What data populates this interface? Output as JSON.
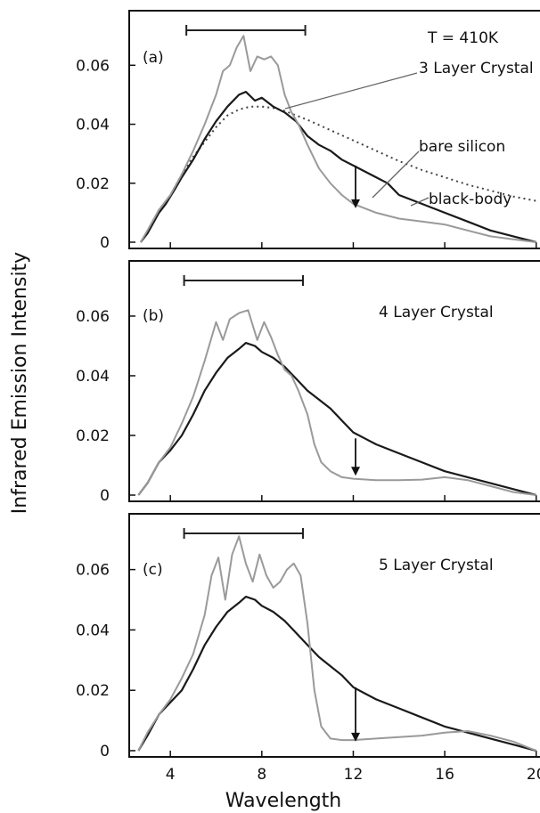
{
  "chart_data": {
    "type": "line",
    "xlabel": "Wavelength",
    "ylabel": "Infrared Emission Intensity",
    "xlim": [
      2.2,
      20.4
    ],
    "x_ticks": [
      "4",
      "8",
      "12",
      "16",
      "20"
    ],
    "x_tick_values": [
      4,
      8,
      12,
      16,
      20
    ],
    "y_ticks": [
      "0",
      "0.02",
      "0.04",
      "0.06"
    ],
    "y_tick_values": [
      0,
      0.02,
      0.04,
      0.06
    ],
    "panels": [
      {
        "letter": "(a)",
        "ylim": [
          0,
          0.077
        ],
        "crystal_label": "3 Layer Crystal",
        "temperature_label": "T = 410K",
        "bare_label": "bare silicon",
        "blackbody_label": "black-body",
        "bar": [
          4.7,
          9.9
        ],
        "arrow": {
          "x": 12.1,
          "from": 0.026,
          "to": 0.0115
        },
        "series": [
          {
            "label": "black-body",
            "style": "dotted",
            "x": [
              2.8,
              3.5,
              4.0,
              4.5,
              5.0,
              5.5,
              6.0,
              6.5,
              7.0,
              7.5,
              8.0,
              8.5,
              9.0,
              9.5,
              10.0,
              11.0,
              12.0,
              13.0,
              14.0,
              15.0,
              16.0,
              17.0,
              18.0,
              19.0,
              20.0
            ],
            "y": [
              0.001,
              0.011,
              0.016,
              0.023,
              0.029,
              0.034,
              0.039,
              0.043,
              0.045,
              0.046,
              0.046,
              0.0455,
              0.0445,
              0.043,
              0.0415,
              0.038,
              0.0345,
              0.031,
              0.0275,
              0.0245,
              0.022,
              0.0195,
              0.0175,
              0.0155,
              0.014
            ]
          },
          {
            "label": "bare silicon",
            "style": "solid",
            "x": [
              2.7,
              3.0,
              3.5,
              3.8,
              4.2,
              4.5,
              5.0,
              5.5,
              6.0,
              6.5,
              7.0,
              7.3,
              7.7,
              8.0,
              8.5,
              9.0,
              9.5,
              10.0,
              10.5,
              11.0,
              11.5,
              12.0,
              12.5,
              13.0,
              13.5,
              14.0,
              15.0,
              16.0,
              17.0,
              18.0,
              19.0,
              20.0
            ],
            "y": [
              0.0,
              0.003,
              0.01,
              0.013,
              0.018,
              0.022,
              0.028,
              0.035,
              0.041,
              0.046,
              0.05,
              0.051,
              0.048,
              0.049,
              0.046,
              0.044,
              0.041,
              0.036,
              0.033,
              0.031,
              0.028,
              0.026,
              0.024,
              0.022,
              0.02,
              0.016,
              0.013,
              0.01,
              0.007,
              0.004,
              0.002,
              0.0
            ]
          },
          {
            "label": "3 Layer Crystal",
            "style": "grey",
            "x": [
              2.7,
              3.0,
              3.5,
              4.0,
              4.5,
              5.0,
              5.5,
              6.0,
              6.3,
              6.6,
              6.9,
              7.2,
              7.5,
              7.8,
              8.1,
              8.4,
              8.7,
              9.0,
              9.3,
              9.6,
              10.0,
              10.5,
              11.0,
              11.5,
              12.0,
              13.0,
              14.0,
              15.0,
              16.0,
              17.0,
              18.0,
              19.0,
              20.0
            ],
            "y": [
              0.0,
              0.004,
              0.011,
              0.016,
              0.023,
              0.031,
              0.04,
              0.05,
              0.058,
              0.06,
              0.066,
              0.07,
              0.058,
              0.063,
              0.062,
              0.063,
              0.06,
              0.05,
              0.044,
              0.04,
              0.033,
              0.025,
              0.02,
              0.016,
              0.013,
              0.01,
              0.008,
              0.007,
              0.006,
              0.004,
              0.002,
              0.001,
              0.0
            ]
          }
        ]
      },
      {
        "letter": "(b)",
        "ylim": [
          0,
          0.077
        ],
        "crystal_label": "4 Layer Crystal",
        "bar": [
          4.6,
          9.8
        ],
        "arrow": {
          "x": 12.1,
          "from": 0.019,
          "to": 0.0065
        },
        "series": [
          {
            "label": "bare silicon",
            "style": "solid",
            "x": [
              2.6,
              3.0,
              3.5,
              4.0,
              4.5,
              5.0,
              5.5,
              6.0,
              6.5,
              7.0,
              7.3,
              7.7,
              8.0,
              8.5,
              9.0,
              9.5,
              10.0,
              10.5,
              11.0,
              11.5,
              12.0,
              12.5,
              13.0,
              14.0,
              15.0,
              16.0,
              17.0,
              18.0,
              19.0,
              20.0
            ],
            "y": [
              0.0,
              0.004,
              0.011,
              0.015,
              0.02,
              0.027,
              0.035,
              0.041,
              0.046,
              0.049,
              0.051,
              0.05,
              0.048,
              0.046,
              0.043,
              0.039,
              0.035,
              0.032,
              0.029,
              0.025,
              0.021,
              0.019,
              0.017,
              0.014,
              0.011,
              0.008,
              0.006,
              0.004,
              0.002,
              0.0
            ]
          },
          {
            "label": "4 Layer Crystal",
            "style": "grey",
            "x": [
              2.6,
              3.0,
              3.5,
              4.0,
              4.5,
              5.0,
              5.5,
              6.0,
              6.3,
              6.6,
              7.0,
              7.4,
              7.8,
              8.1,
              8.4,
              8.7,
              9.0,
              9.3,
              9.6,
              10.0,
              10.3,
              10.6,
              11.0,
              11.5,
              12.0,
              13.0,
              14.0,
              15.0,
              16.0,
              17.0,
              18.0,
              19.0,
              20.0
            ],
            "y": [
              0.0,
              0.004,
              0.011,
              0.016,
              0.024,
              0.033,
              0.045,
              0.058,
              0.052,
              0.059,
              0.061,
              0.062,
              0.052,
              0.058,
              0.053,
              0.047,
              0.042,
              0.04,
              0.035,
              0.027,
              0.017,
              0.011,
              0.008,
              0.006,
              0.0055,
              0.005,
              0.005,
              0.0052,
              0.006,
              0.005,
              0.003,
              0.001,
              0.0
            ]
          }
        ]
      },
      {
        "letter": "(c)",
        "ylim": [
          0,
          0.077
        ],
        "crystal_label": "5 Layer Crystal",
        "bar": [
          4.6,
          9.8
        ],
        "arrow": {
          "x": 12.1,
          "from": 0.021,
          "to": 0.003
        },
        "series": [
          {
            "label": "bare silicon",
            "style": "solid",
            "x": [
              2.6,
              3.0,
              3.5,
              4.0,
              4.5,
              5.0,
              5.5,
              6.0,
              6.5,
              7.0,
              7.3,
              7.7,
              8.0,
              8.5,
              9.0,
              9.5,
              10.0,
              10.5,
              11.0,
              11.5,
              12.0,
              12.5,
              13.0,
              14.0,
              15.0,
              16.0,
              17.0,
              18.0,
              19.0,
              20.0
            ],
            "y": [
              0.0,
              0.005,
              0.012,
              0.016,
              0.02,
              0.027,
              0.035,
              0.041,
              0.046,
              0.049,
              0.051,
              0.05,
              0.048,
              0.046,
              0.043,
              0.039,
              0.035,
              0.031,
              0.028,
              0.025,
              0.021,
              0.019,
              0.017,
              0.014,
              0.011,
              0.008,
              0.006,
              0.004,
              0.002,
              0.0
            ]
          },
          {
            "label": "5 Layer Crystal",
            "style": "grey",
            "x": [
              2.6,
              3.0,
              3.5,
              4.0,
              4.5,
              5.0,
              5.5,
              5.8,
              6.1,
              6.4,
              6.7,
              7.0,
              7.3,
              7.6,
              7.9,
              8.2,
              8.5,
              8.8,
              9.1,
              9.4,
              9.7,
              10.0,
              10.3,
              10.6,
              11.0,
              11.5,
              12.0,
              13.0,
              14.0,
              15.0,
              16.0,
              17.0,
              18.0,
              19.0,
              20.0
            ],
            "y": [
              0.0,
              0.006,
              0.012,
              0.017,
              0.024,
              0.032,
              0.045,
              0.058,
              0.064,
              0.05,
              0.065,
              0.071,
              0.062,
              0.056,
              0.065,
              0.058,
              0.054,
              0.056,
              0.06,
              0.062,
              0.058,
              0.042,
              0.02,
              0.008,
              0.004,
              0.0035,
              0.0035,
              0.004,
              0.0045,
              0.005,
              0.006,
              0.0065,
              0.005,
              0.003,
              0.0
            ]
          }
        ]
      }
    ]
  }
}
